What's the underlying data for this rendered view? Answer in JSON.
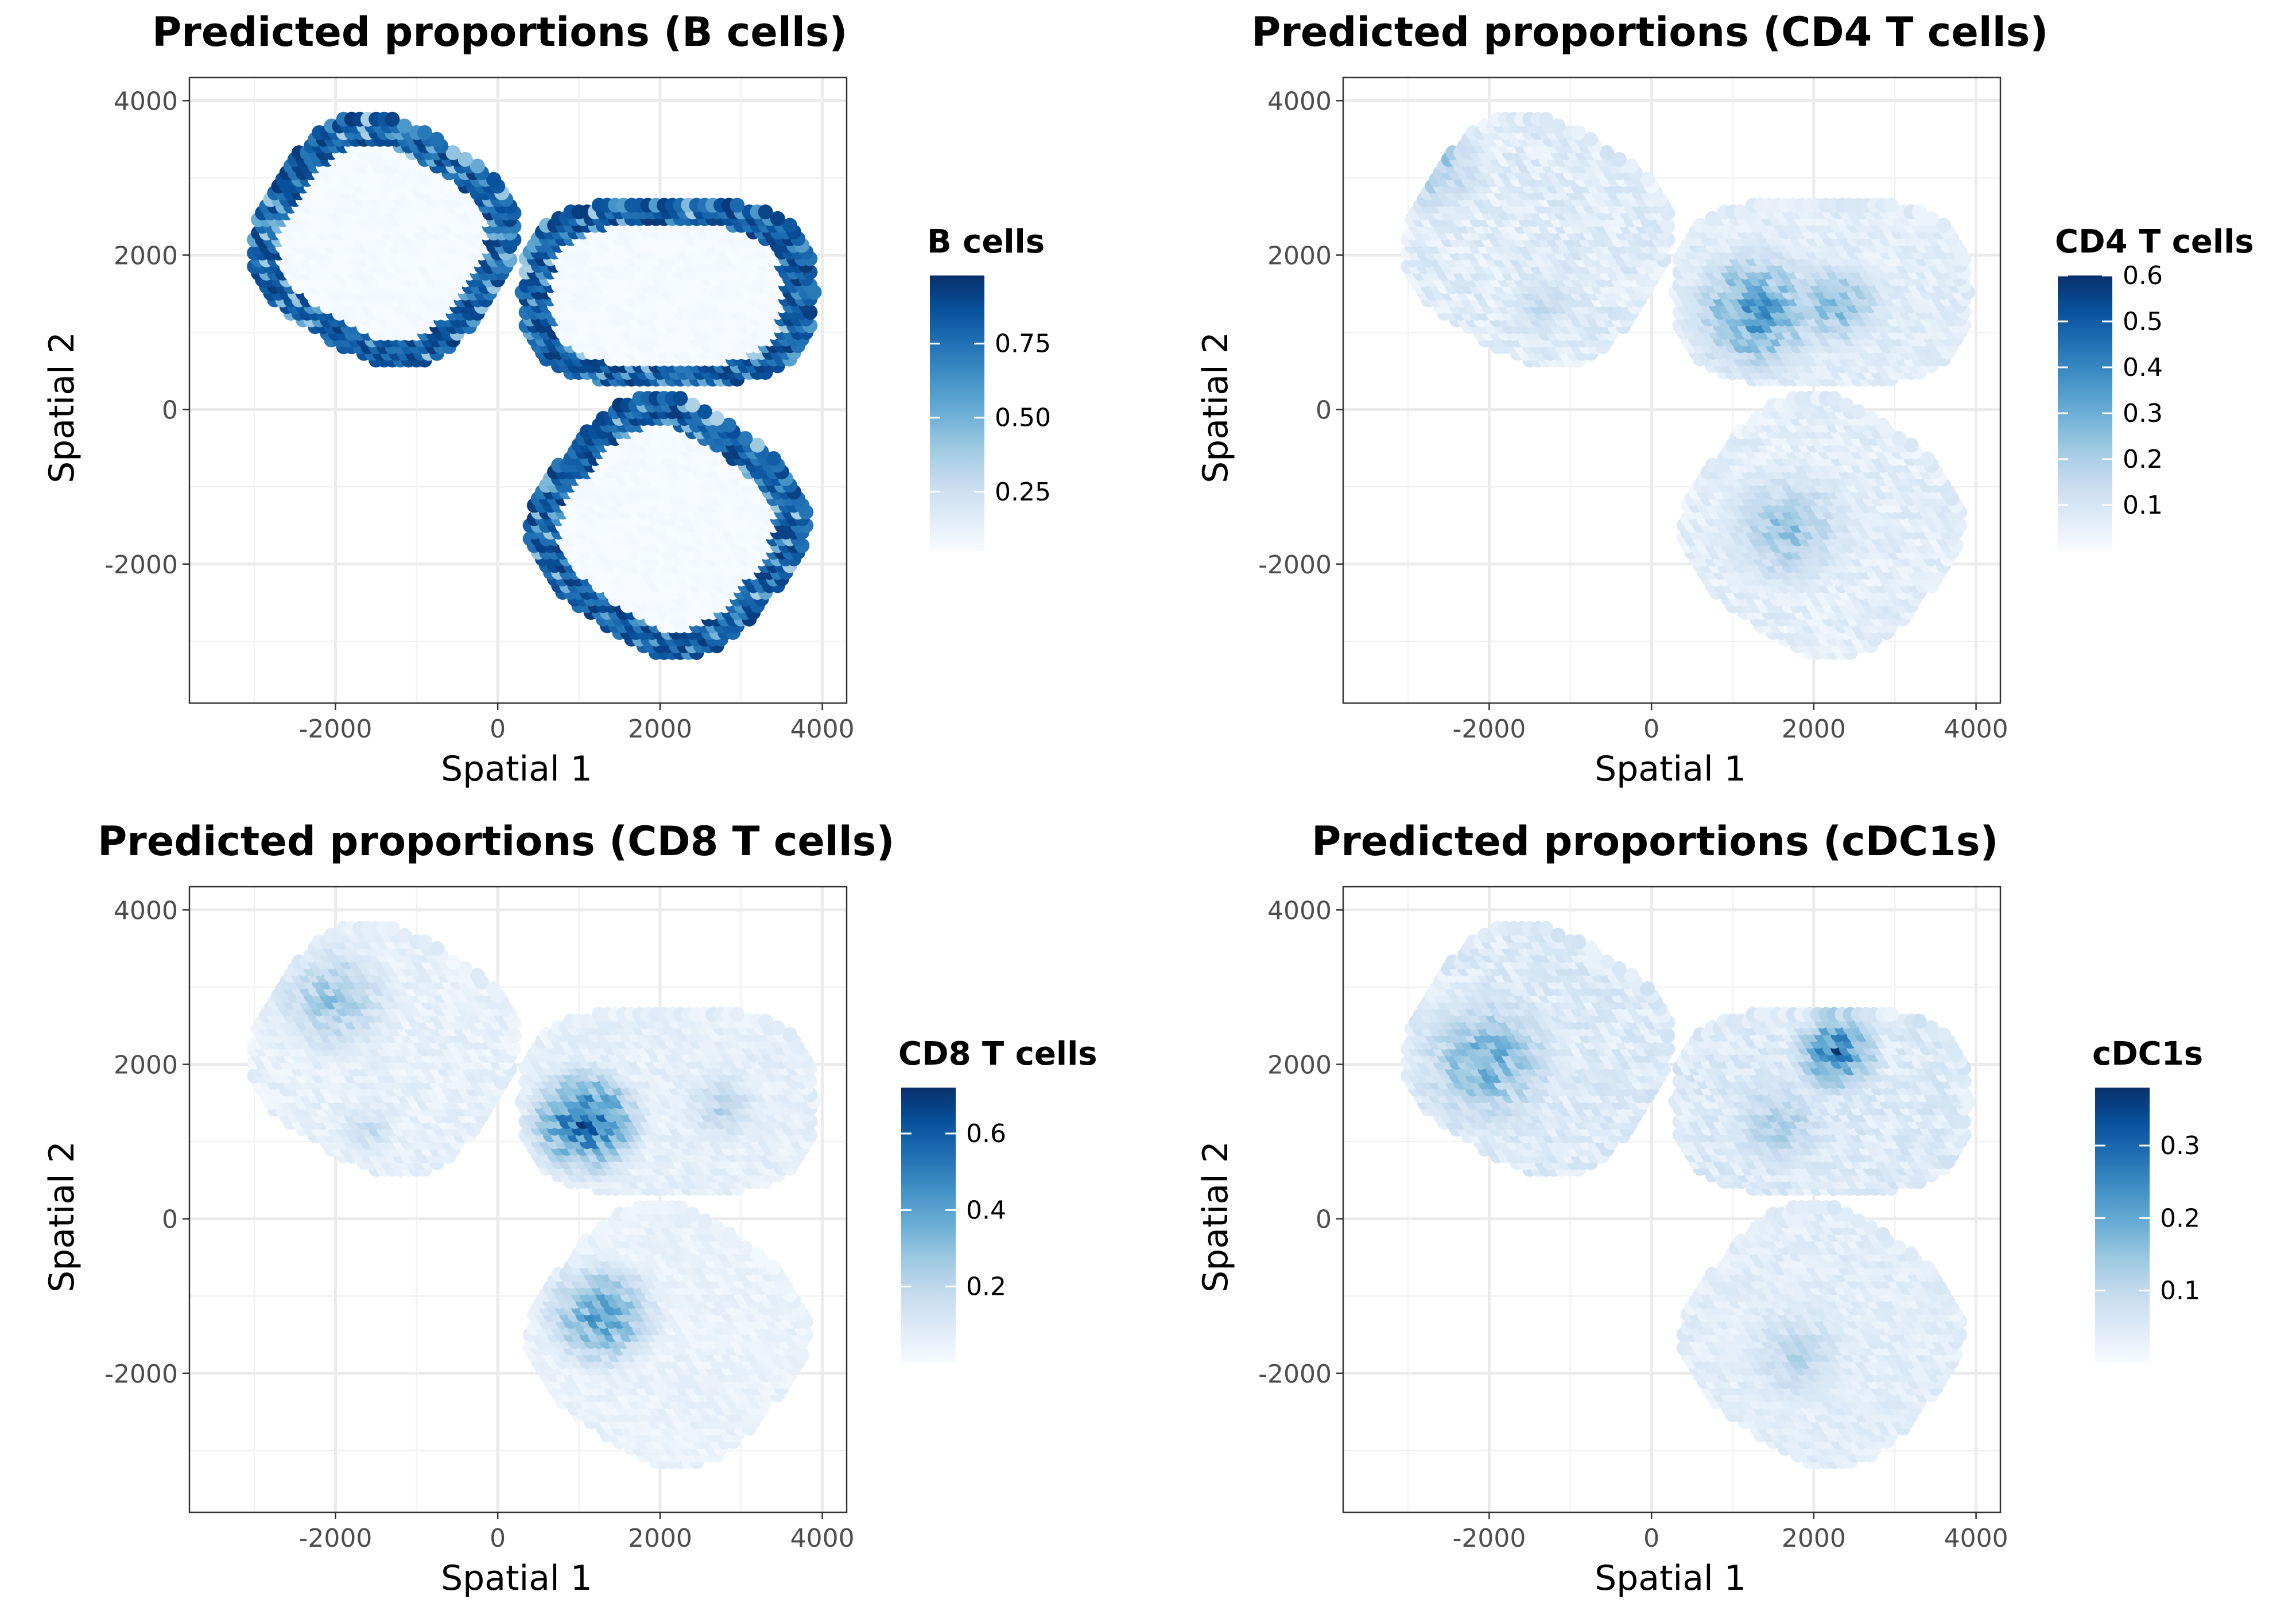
{
  "figure": {
    "description_free": true
  },
  "panels_shared": {
    "xlabel": "Spatial 1",
    "ylabel": "Spatial 2",
    "x_ticks": [
      -2000,
      0,
      2000,
      4000
    ],
    "y_ticks": [
      -2000,
      0,
      2000,
      4000
    ],
    "x_tick_labels": [
      "-2000",
      "0",
      "2000",
      "4000"
    ],
    "y_tick_labels": [
      "-2000",
      "0",
      "2000",
      "4000"
    ],
    "xlim": [
      -3800,
      4300
    ],
    "ylim": [
      -3800,
      4300
    ],
    "palette": [
      "#f7fbff",
      "#deebf7",
      "#c6dbef",
      "#9ecae1",
      "#6baed6",
      "#4292c6",
      "#2171b5",
      "#08519c",
      "#08306b"
    ],
    "grid": true
  },
  "chart_data": [
    {
      "type": "scatter",
      "title": "Predicted proportions (B cells)",
      "xlabel": "Spatial 1",
      "ylabel": "Spatial 2",
      "xlim": [
        -3800,
        4300
      ],
      "ylim": [
        -3800,
        4300
      ],
      "legend": {
        "title": "B cells",
        "range": [
          0.05,
          0.98
        ],
        "ticks": [
          0.25,
          0.5,
          0.75
        ],
        "tick_labels": [
          "0.25",
          "0.50",
          "0.75"
        ],
        "position": "right"
      },
      "series": [
        {
          "name": "upper-left section",
          "center": [
            -1400,
            2200
          ],
          "radius_x": 1500,
          "radius_y": 1450,
          "tilt_deg": -32,
          "pattern": "rim",
          "low": 0.05,
          "high": 0.95
        },
        {
          "name": "upper-right section",
          "center": [
            2100,
            1520
          ],
          "radius_x": 1800,
          "radius_y": 1180,
          "tilt_deg": 0,
          "pattern": "rim",
          "low": 0.05,
          "high": 0.95
        },
        {
          "name": "lower section",
          "center": [
            2100,
            -1500
          ],
          "radius_x": 1550,
          "radius_y": 1500,
          "tilt_deg": -38,
          "pattern": "rim",
          "low": 0.05,
          "high": 0.95
        }
      ]
    },
    {
      "type": "scatter",
      "title": "Predicted proportions (CD4 T cells)",
      "xlabel": "Spatial 1",
      "ylabel": "Spatial 2",
      "xlim": [
        -3800,
        4300
      ],
      "ylim": [
        -3800,
        4300
      ],
      "legend": {
        "title": "CD4 T cells",
        "range": [
          0.0,
          0.6
        ],
        "ticks": [
          0.1,
          0.2,
          0.3,
          0.4,
          0.5,
          0.6
        ],
        "tick_labels": [
          "0.1",
          "0.2",
          "0.3",
          "0.4",
          "0.5",
          "0.6"
        ],
        "position": "right"
      },
      "series": [
        {
          "name": "upper-left section",
          "center": [
            -1400,
            2200
          ],
          "radius_x": 1500,
          "radius_y": 1450,
          "tilt_deg": -32,
          "pattern": "hotspots",
          "low": 0.02,
          "high": 0.12,
          "hotspots": [
            {
              "x": -2700,
              "y": 3200,
              "r": 900,
              "peak": 0.28
            },
            {
              "x": -1300,
              "y": 1400,
              "r": 700,
              "peak": 0.18
            }
          ]
        },
        {
          "name": "upper-right section",
          "center": [
            2100,
            1520
          ],
          "radius_x": 1800,
          "radius_y": 1180,
          "tilt_deg": 0,
          "pattern": "hotspots",
          "low": 0.03,
          "high": 0.1,
          "hotspots": [
            {
              "x": 1300,
              "y": 1300,
              "r": 1100,
              "peak": 0.42
            },
            {
              "x": 2300,
              "y": 1400,
              "r": 800,
              "peak": 0.32
            }
          ]
        },
        {
          "name": "lower section",
          "center": [
            2100,
            -1500
          ],
          "radius_x": 1550,
          "radius_y": 1500,
          "tilt_deg": -38,
          "pattern": "hotspots",
          "low": 0.02,
          "high": 0.1,
          "hotspots": [
            {
              "x": 1700,
              "y": -1500,
              "r": 1100,
              "peak": 0.28
            }
          ]
        }
      ]
    },
    {
      "type": "scatter",
      "title": "Predicted proportions (CD8 T cells)",
      "xlabel": "Spatial 1",
      "ylabel": "Spatial 2",
      "xlim": [
        -3800,
        4300
      ],
      "ylim": [
        -3800,
        4300
      ],
      "legend": {
        "title": "CD8 T cells",
        "range": [
          0.0,
          0.72
        ],
        "ticks": [
          0.2,
          0.4,
          0.6
        ],
        "tick_labels": [
          "0.2",
          "0.4",
          "0.6"
        ],
        "position": "right"
      },
      "series": [
        {
          "name": "upper-left section",
          "center": [
            -1400,
            2200
          ],
          "radius_x": 1500,
          "radius_y": 1450,
          "tilt_deg": -32,
          "pattern": "hotspots",
          "low": 0.02,
          "high": 0.1,
          "hotspots": [
            {
              "x": -2000,
              "y": 2900,
              "r": 1000,
              "peak": 0.32
            },
            {
              "x": -1600,
              "y": 1200,
              "r": 500,
              "peak": 0.22
            }
          ]
        },
        {
          "name": "upper-right section",
          "center": [
            2100,
            1520
          ],
          "radius_x": 1800,
          "radius_y": 1180,
          "tilt_deg": 0,
          "pattern": "hotspots",
          "low": 0.03,
          "high": 0.1,
          "hotspots": [
            {
              "x": 1100,
              "y": 1300,
              "r": 900,
              "peak": 0.68
            },
            {
              "x": 2800,
              "y": 1500,
              "r": 700,
              "peak": 0.25
            }
          ]
        },
        {
          "name": "lower section",
          "center": [
            2100,
            -1500
          ],
          "radius_x": 1550,
          "radius_y": 1500,
          "tilt_deg": -38,
          "pattern": "hotspots",
          "low": 0.02,
          "high": 0.08,
          "hotspots": [
            {
              "x": 1300,
              "y": -1200,
              "r": 900,
              "peak": 0.5
            }
          ]
        }
      ]
    },
    {
      "type": "scatter",
      "title": "Predicted proportions (cDC1s)",
      "xlabel": "Spatial 1",
      "ylabel": "Spatial 2",
      "xlim": [
        -3800,
        4300
      ],
      "ylim": [
        -3800,
        4300
      ],
      "legend": {
        "title": "cDC1s",
        "range": [
          0.0,
          0.38
        ],
        "ticks": [
          0.1,
          0.2,
          0.3
        ],
        "tick_labels": [
          "0.1",
          "0.2",
          "0.3"
        ],
        "position": "right"
      },
      "series": [
        {
          "name": "upper-left section",
          "center": [
            -1400,
            2200
          ],
          "radius_x": 1500,
          "radius_y": 1450,
          "tilt_deg": -32,
          "pattern": "hotspots",
          "low": 0.02,
          "high": 0.08,
          "hotspots": [
            {
              "x": -2000,
              "y": 2100,
              "r": 1200,
              "peak": 0.22
            }
          ]
        },
        {
          "name": "upper-right section",
          "center": [
            2100,
            1520
          ],
          "radius_x": 1800,
          "radius_y": 1180,
          "tilt_deg": 0,
          "pattern": "hotspots",
          "low": 0.02,
          "high": 0.08,
          "hotspots": [
            {
              "x": 2300,
              "y": 2200,
              "r": 700,
              "peak": 0.33
            },
            {
              "x": 1600,
              "y": 1300,
              "r": 900,
              "peak": 0.16
            }
          ]
        },
        {
          "name": "lower section",
          "center": [
            2100,
            -1500
          ],
          "radius_x": 1550,
          "radius_y": 1500,
          "tilt_deg": -38,
          "pattern": "hotspots",
          "low": 0.02,
          "high": 0.06,
          "hotspots": [
            {
              "x": 1800,
              "y": -1700,
              "r": 1000,
              "peak": 0.13
            }
          ]
        }
      ]
    }
  ]
}
